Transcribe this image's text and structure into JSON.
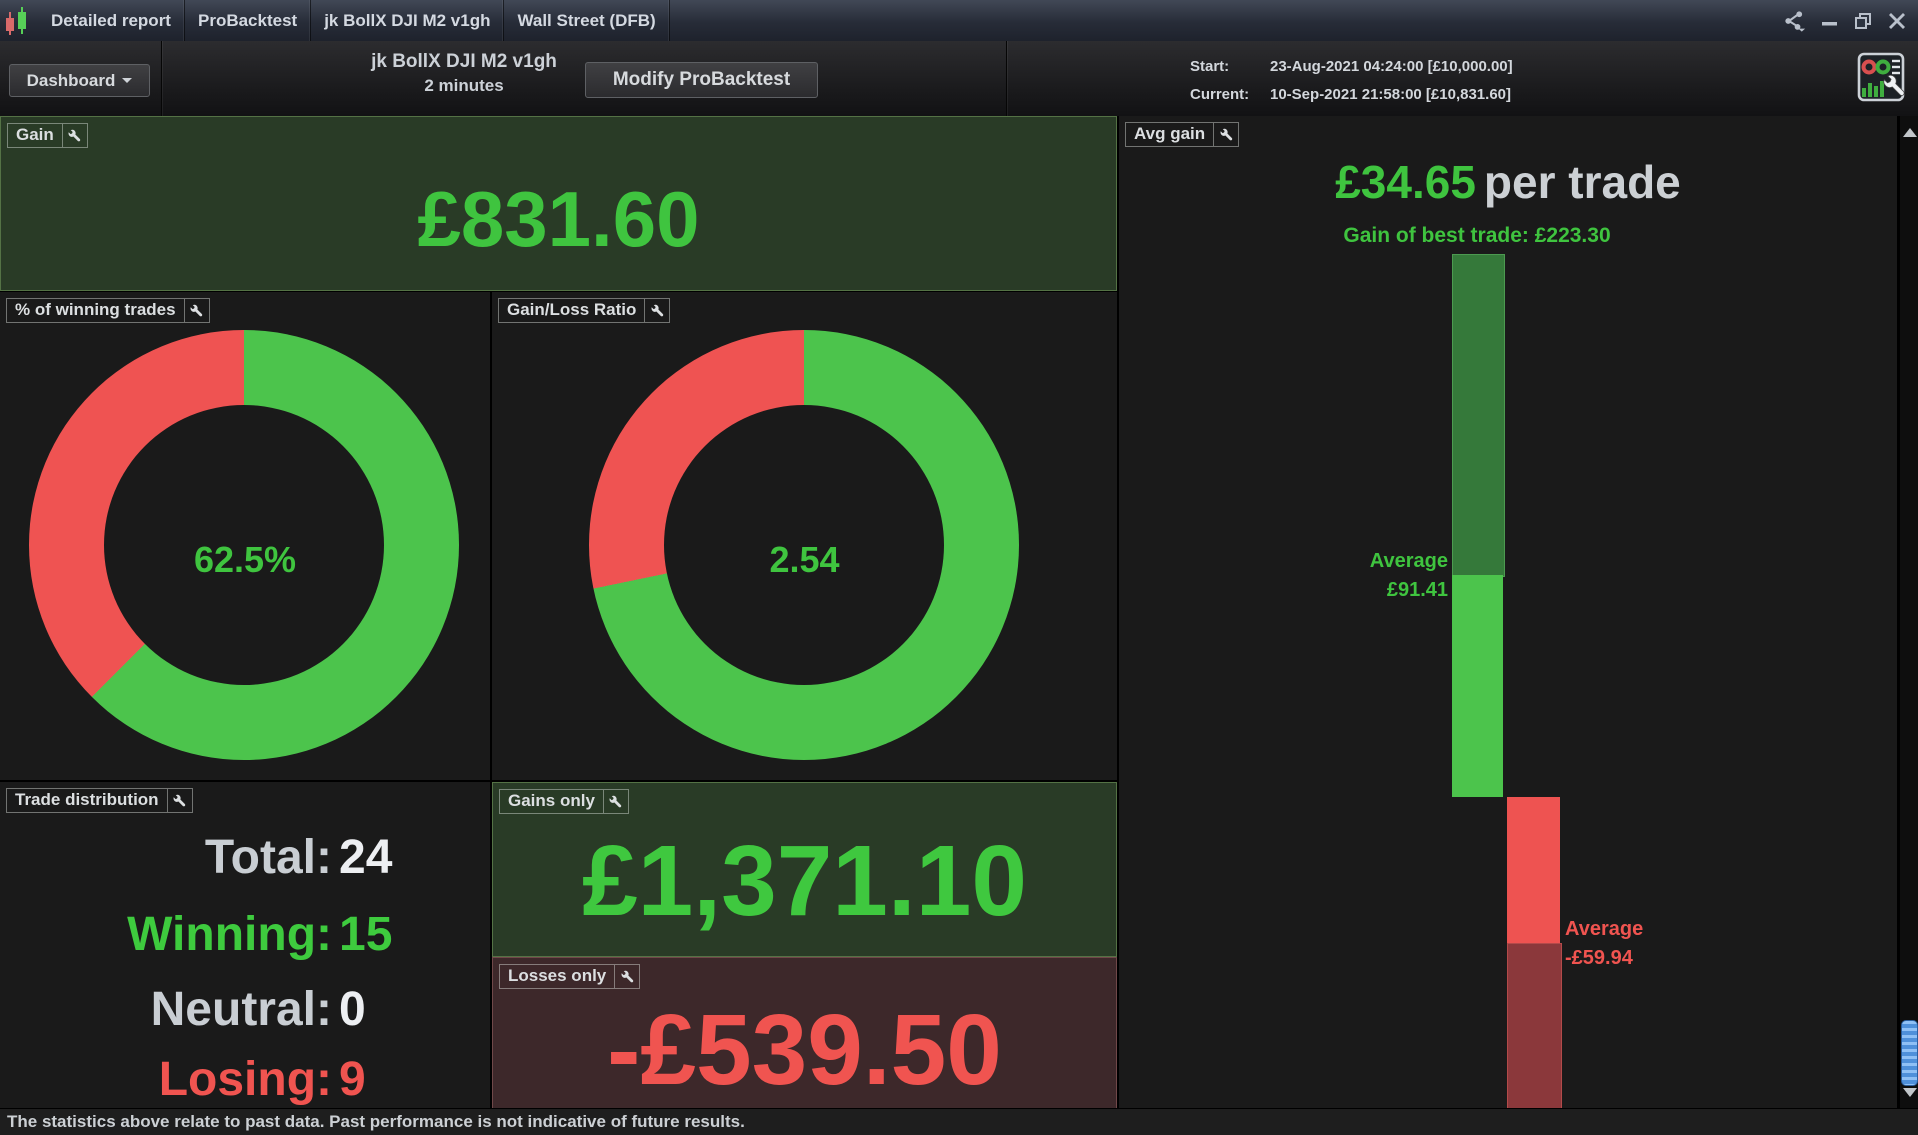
{
  "titlebar": {
    "tabs": [
      "Detailed report",
      "ProBacktest",
      "jk BollX DJI M2 v1gh",
      "Wall Street (DFB)"
    ]
  },
  "toolbar": {
    "dashboard_label": "Dashboard",
    "title_line1": "jk BollX DJI M2 v1gh",
    "title_line2": "2 minutes",
    "modify_label": "Modify ProBacktest",
    "start_label": "Start:",
    "start_value": "23-Aug-2021 04:24:00 [£10,000.00]",
    "current_label": "Current:",
    "current_value": "10-Sep-2021 21:58:00 [£10,831.60]"
  },
  "panels": {
    "gain": {
      "title": "Gain",
      "value": "£831.60"
    },
    "winning": {
      "title": "% of winning trades",
      "value": "62.5%"
    },
    "ratio": {
      "title": "Gain/Loss Ratio",
      "value": "2.54"
    },
    "distribution": {
      "title": "Trade distribution",
      "rows": [
        {
          "label": "Total:",
          "value": "24"
        },
        {
          "label": "Winning:",
          "value": "15"
        },
        {
          "label": "Neutral:",
          "value": "0"
        },
        {
          "label": "Losing:",
          "value": "9"
        }
      ]
    },
    "gains_only": {
      "title": "Gains only",
      "value": "£1,371.10"
    },
    "losses_only": {
      "title": "Losses only",
      "value": "-£539.50"
    },
    "avg_gain": {
      "title": "Avg gain",
      "per_trade_value": "£34.65",
      "per_trade_suffix": "per trade",
      "best_trade_label": "Gain of best trade: £223.30",
      "avg_win_label": "Average",
      "avg_win_value": "£91.41",
      "avg_loss_label": "Average",
      "avg_loss_value": "-£59.94"
    }
  },
  "statusbar": {
    "text": "The statistics above relate to past data. Past performance is not indicative of future results."
  },
  "colors": {
    "accent_green": "#3fc43f",
    "accent_red": "#ef5352",
    "dark_bar_green": "#35793a",
    "dark_bar_red": "#8b383b",
    "green_panel_bg": "#293b26",
    "red_panel_bg": "#3d282a"
  },
  "chart_data": [
    {
      "type": "pie",
      "title": "% of winning trades",
      "labels": [
        "winning",
        "losing"
      ],
      "values": [
        62.5,
        37.5
      ],
      "unit": "%",
      "green_fraction": 0.625,
      "colors": [
        "#4cc44c",
        "#ef5352"
      ],
      "center_label": "62.5%",
      "legend": "none"
    },
    {
      "type": "pie",
      "title": "Gain/Loss Ratio",
      "labels": [
        "gains",
        "losses"
      ],
      "values": [
        71.75,
        28.25
      ],
      "unit": "%",
      "ratio": 2.54,
      "green_fraction": 0.7175,
      "colors": [
        "#4cc44c",
        "#ef5352"
      ],
      "center_label": "2.54",
      "legend": "none"
    },
    {
      "type": "bar",
      "title": "Avg gain per trade",
      "currency": "£",
      "avg_per_trade": 34.65,
      "best_trade": 223.3,
      "average_gain": 91.41,
      "average_loss": -59.94,
      "note": "loss bar clipped at panel bottom",
      "colors": {
        "gain_above_avg": "#35793a",
        "gain_below_avg": "#4cc44c",
        "loss_above_avg": "#ee5351",
        "loss_below_avg": "#8b383b"
      }
    }
  ]
}
